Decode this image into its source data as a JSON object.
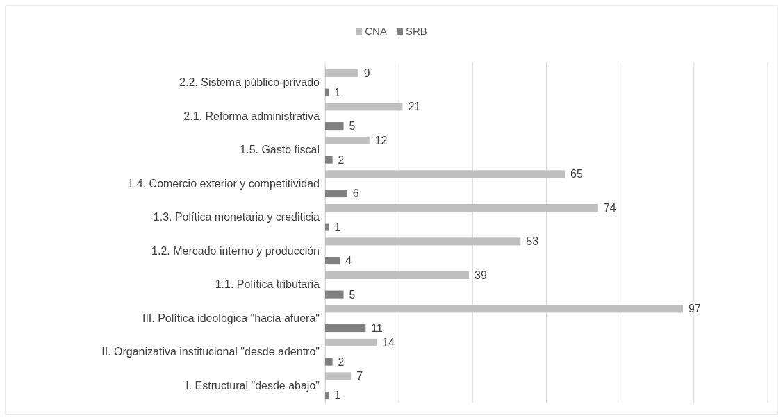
{
  "chart_data": {
    "type": "bar",
    "orientation": "horizontal",
    "categories": [
      "2.2. Sistema público-privado",
      "2.1. Reforma administrativa",
      "1.5. Gasto fiscal",
      "1.4. Comercio exterior y competitividad",
      "1.3. Política monetaria y crediticia",
      "1.2. Mercado interno y producción",
      "1.1. Política tributaria",
      "III. Política ideológica \"hacia afuera\"",
      "II. Organizativa institucional \"desde adentro\"",
      "I. Estructural \"desde abajo\""
    ],
    "series": [
      {
        "name": "CNA",
        "color": "#bfbfbf",
        "values": [
          9,
          21,
          12,
          65,
          74,
          53,
          39,
          97,
          14,
          7
        ]
      },
      {
        "name": "SRB",
        "color": "#808080",
        "values": [
          1,
          5,
          2,
          6,
          1,
          4,
          5,
          11,
          2,
          1
        ]
      }
    ],
    "xlim": [
      0,
      120
    ],
    "xticks": [
      {
        "value": 0,
        "label": null
      },
      {
        "value": 20,
        "label": null
      },
      {
        "value": 40,
        "label": null
      },
      {
        "value": 60,
        "label": null
      },
      {
        "value": 80,
        "label": null
      },
      {
        "value": 100,
        "label": null
      },
      {
        "value": 120,
        "label": null
      }
    ],
    "tick_labels": "y",
    "grid": "x",
    "legend": "top",
    "data_labels": true
  }
}
